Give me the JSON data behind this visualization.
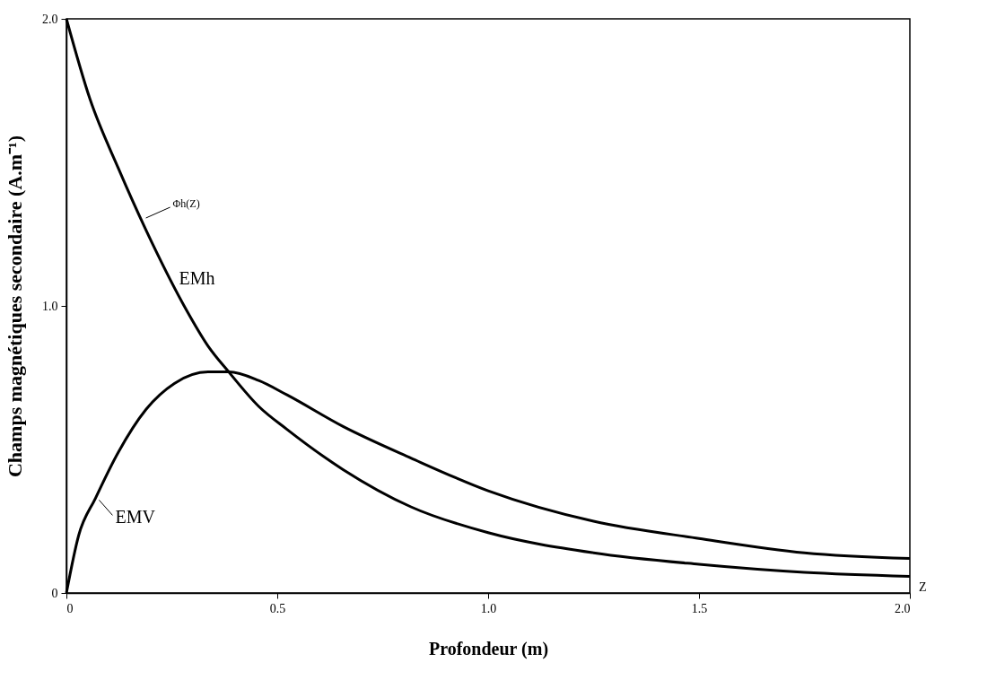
{
  "chart_data": {
    "type": "line",
    "xlabel": "Profondeur (m)",
    "ylabel": "Champs magnétiques secondaire (A.m⁻¹)",
    "xlim": [
      0,
      2.0
    ],
    "ylim": [
      0,
      2.0
    ],
    "xticks": [
      0,
      {
        "value": 0.5,
        "label": "0.5"
      },
      {
        "value": 1,
        "label": "1.0"
      },
      {
        "value": 1.5,
        "label": "1.5"
      },
      {
        "value": 2,
        "label": "2.0"
      }
    ],
    "yticks": [
      0,
      {
        "value": 1,
        "label": "1.0"
      },
      {
        "value": 2,
        "label": "2.0"
      }
    ],
    "grid": false,
    "marker": "none",
    "line_style": "solid",
    "series": [
      {
        "name": "EMh",
        "color": "#000000",
        "x": [
          0,
          0.056,
          0.123,
          0.203,
          0.283,
          0.336,
          0.385,
          0.456,
          0.523,
          0.656,
          0.817,
          1.0,
          1.25,
          1.5,
          1.75,
          2.0
        ],
        "values": [
          2.0,
          1.72,
          1.48,
          1.22,
          0.99,
          0.86,
          0.77,
          0.65,
          0.57,
          0.43,
          0.3,
          0.21,
          0.14,
          0.1,
          0.072,
          0.058
        ]
      },
      {
        "name": "EMV",
        "color": "#000000",
        "x": [
          0,
          0.029,
          0.069,
          0.123,
          0.189,
          0.256,
          0.336,
          0.385,
          0.456,
          0.523,
          0.656,
          0.817,
          1.0,
          1.25,
          1.5,
          1.75,
          2.0
        ],
        "values": [
          0,
          0.2,
          0.33,
          0.49,
          0.64,
          0.73,
          0.77,
          0.77,
          0.74,
          0.69,
          0.58,
          0.47,
          0.356,
          0.25,
          0.19,
          0.14,
          0.12
        ]
      }
    ],
    "annotations": [
      {
        "text": "Φh(Z)",
        "x": 0.18,
        "y": 1.3
      },
      "Z"
    ]
  }
}
